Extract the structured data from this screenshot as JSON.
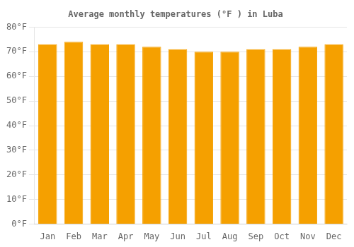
{
  "chart_data": {
    "type": "bar",
    "title": "Average monthly temperatures (°F ) in Luba",
    "categories": [
      "Jan",
      "Feb",
      "Mar",
      "Apr",
      "May",
      "Jun",
      "Jul",
      "Aug",
      "Sep",
      "Oct",
      "Nov",
      "Dec"
    ],
    "values": [
      73,
      74,
      73,
      73,
      72,
      71,
      70,
      70,
      71,
      71,
      72,
      73
    ],
    "color": "#F5A000",
    "ylim": [
      0,
      80
    ],
    "yticks": [
      {
        "value": 0,
        "label": "0°F"
      },
      {
        "value": 10,
        "label": "10°F"
      },
      {
        "value": 20,
        "label": "20°F"
      },
      {
        "value": 30,
        "label": "30°F"
      },
      {
        "value": 40,
        "label": "40°F"
      },
      {
        "value": 50,
        "label": "50°F"
      },
      {
        "value": 60,
        "label": "60°F"
      },
      {
        "value": 70,
        "label": "70°F"
      },
      {
        "value": 80,
        "label": "80°F"
      }
    ],
    "grid": true
  }
}
